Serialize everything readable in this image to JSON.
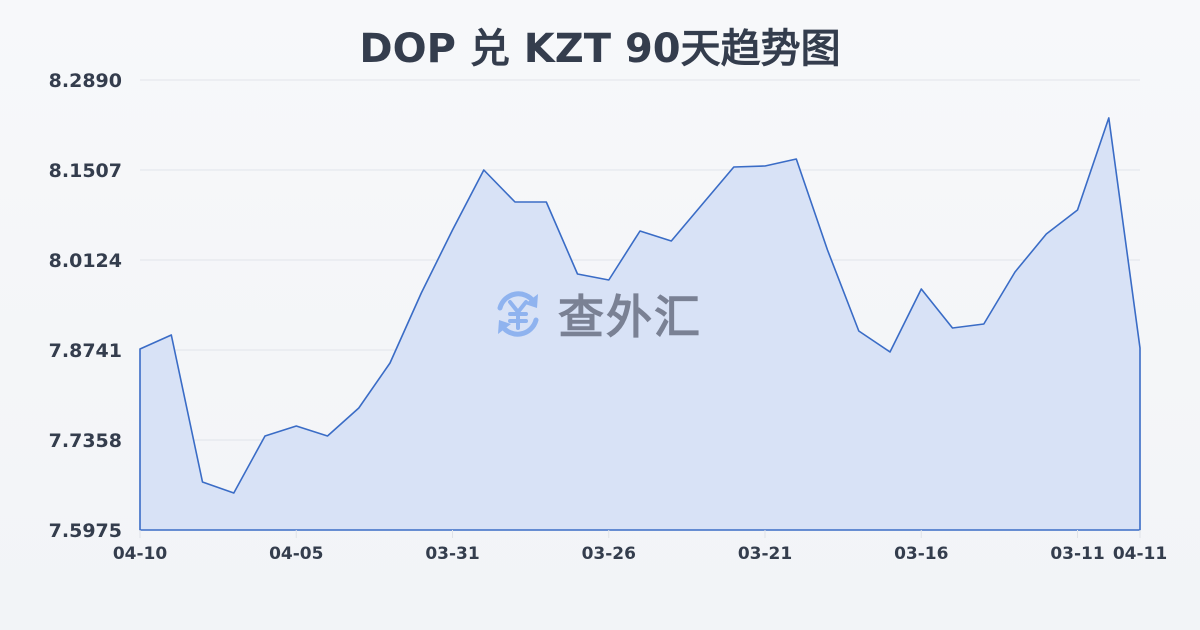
{
  "title": "DOP 兑 KZT 90天趋势图",
  "watermark": {
    "icon": "yen-exchange-icon",
    "text": "查外汇"
  },
  "colors": {
    "line": "#3a6cc6",
    "fill": "#d6e0f5",
    "text": "#343d4d",
    "grid": "#e1e4ea",
    "watermark_icon": "#8fb3ef",
    "watermark_text": "#7a8194"
  },
  "chart_data": {
    "type": "area",
    "title": "DOP 兑 KZT 90天趋势图",
    "xlabel": "",
    "ylabel": "",
    "ylim": [
      7.5975,
      8.289
    ],
    "yticks": [
      "8.2890",
      "8.1507",
      "8.0124",
      "7.8741",
      "7.7358",
      "7.5975"
    ],
    "xticks": [
      {
        "label": "04-10",
        "index": 0
      },
      {
        "label": "04-05",
        "index": 5
      },
      {
        "label": "03-31",
        "index": 10
      },
      {
        "label": "03-26",
        "index": 15
      },
      {
        "label": "03-21",
        "index": 20
      },
      {
        "label": "03-16",
        "index": 25
      },
      {
        "label": "03-11",
        "index": 30
      },
      {
        "label": "04-11",
        "index": 32
      }
    ],
    "grid": true,
    "legend": "none",
    "series": [
      {
        "name": "DOP/KZT",
        "values": [
          7.8756,
          7.8971,
          7.6712,
          7.6543,
          7.7419,
          7.7573,
          7.7419,
          7.7849,
          7.8541,
          7.9617,
          8.0585,
          8.1507,
          8.1015,
          8.1015,
          7.9909,
          7.9817,
          8.057,
          8.0416,
          8.0985,
          8.1553,
          8.1569,
          8.1676,
          8.0278,
          7.9033,
          7.871,
          7.9678,
          7.9079,
          7.914,
          7.994,
          8.0524,
          8.0893,
          8.2307,
          7.8771
        ]
      }
    ]
  }
}
